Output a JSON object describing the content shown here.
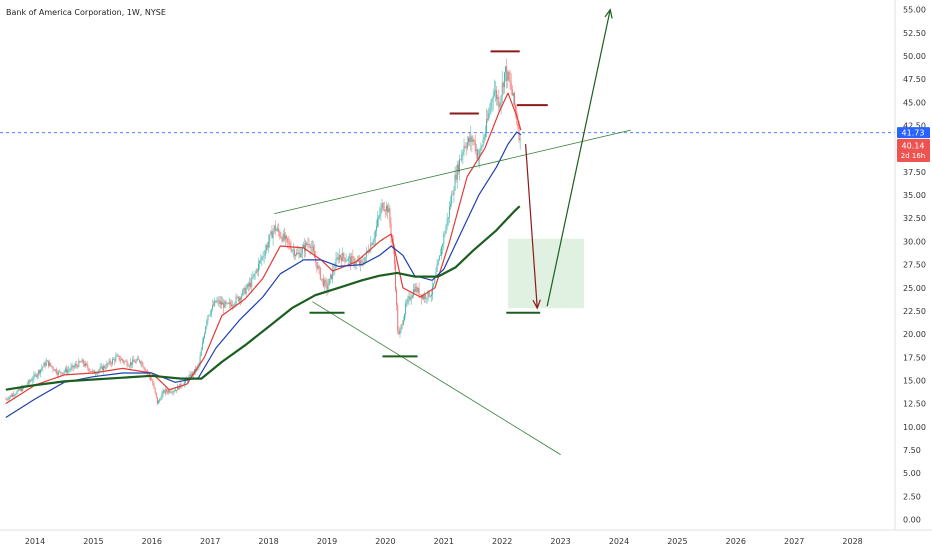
{
  "header": {
    "symbol_title": "Bank of America Corporation, 1W, NYSE"
  },
  "colors": {
    "candle_up": "#26a69a",
    "candle_down": "#ef5350",
    "ma_fast": "#e53935",
    "ma_mid": "#1e40af",
    "ma_slow": "#1b5e20",
    "trend_line": "#2e7d32",
    "drawing_red": "#8b1a1a",
    "drawing_green": "#1b5e20",
    "target_box": "#c8e6c9",
    "price_line": "#2962ff"
  },
  "price_axis": {
    "ticks": [
      "55.00",
      "52.50",
      "50.00",
      "47.50",
      "45.00",
      "42.50",
      "40.00",
      "37.50",
      "35.00",
      "32.50",
      "30.00",
      "27.50",
      "25.00",
      "22.50",
      "20.00",
      "17.50",
      "15.00",
      "12.50",
      "10.00",
      "7.50",
      "5.00",
      "2.50",
      "0.00"
    ],
    "last_price_tag": "41.73",
    "current_price_tag": "40.14",
    "countdown_tag": "2d 16h"
  },
  "time_axis": {
    "ticks": [
      "2014",
      "2015",
      "2016",
      "2017",
      "2018",
      "2019",
      "2020",
      "2021",
      "2022",
      "2023",
      "2024",
      "2025",
      "2026",
      "2027",
      "2028"
    ]
  },
  "chart_data": {
    "type": "candlestick",
    "title": "Bank of America Corporation, 1W, NYSE",
    "ylim": [
      0,
      55
    ],
    "xlim": [
      2013.5,
      2028.8
    ],
    "price_line": 41.73,
    "price_key": [
      [
        2013.5,
        13.0
      ],
      [
        2013.8,
        14.2
      ],
      [
        2014.0,
        15.5
      ],
      [
        2014.2,
        17.0
      ],
      [
        2014.4,
        15.8
      ],
      [
        2014.6,
        16.2
      ],
      [
        2014.8,
        17.0
      ],
      [
        2015.0,
        15.8
      ],
      [
        2015.2,
        16.5
      ],
      [
        2015.4,
        17.5
      ],
      [
        2015.6,
        16.8
      ],
      [
        2015.8,
        17.2
      ],
      [
        2016.0,
        15.0
      ],
      [
        2016.1,
        12.5
      ],
      [
        2016.2,
        13.8
      ],
      [
        2016.4,
        14.0
      ],
      [
        2016.6,
        15.0
      ],
      [
        2016.8,
        16.5
      ],
      [
        2016.95,
        22.0
      ],
      [
        2017.1,
        23.5
      ],
      [
        2017.3,
        23.0
      ],
      [
        2017.5,
        24.0
      ],
      [
        2017.7,
        25.5
      ],
      [
        2017.9,
        28.5
      ],
      [
        2018.1,
        31.5
      ],
      [
        2018.3,
        30.0
      ],
      [
        2018.5,
        28.5
      ],
      [
        2018.7,
        30.0
      ],
      [
        2018.9,
        26.0
      ],
      [
        2019.0,
        25.0
      ],
      [
        2019.2,
        28.5
      ],
      [
        2019.4,
        28.0
      ],
      [
        2019.6,
        27.5
      ],
      [
        2019.8,
        30.5
      ],
      [
        2019.95,
        34.0
      ],
      [
        2020.05,
        33.5
      ],
      [
        2020.15,
        28.0
      ],
      [
        2020.22,
        19.5
      ],
      [
        2020.35,
        23.0
      ],
      [
        2020.5,
        25.0
      ],
      [
        2020.65,
        24.0
      ],
      [
        2020.8,
        24.5
      ],
      [
        2020.9,
        27.5
      ],
      [
        2021.05,
        32.0
      ],
      [
        2021.2,
        37.0
      ],
      [
        2021.35,
        40.5
      ],
      [
        2021.5,
        41.0
      ],
      [
        2021.6,
        39.0
      ],
      [
        2021.75,
        43.0
      ],
      [
        2021.85,
        46.5
      ],
      [
        2021.95,
        45.0
      ],
      [
        2022.05,
        48.5
      ],
      [
        2022.15,
        46.5
      ],
      [
        2022.25,
        43.5
      ],
      [
        2022.32,
        40.1
      ]
    ],
    "moving_averages": [
      {
        "key": "ma_fast",
        "color_key": "ma_fast",
        "width": 1.2,
        "points": [
          [
            2013.5,
            12.5
          ],
          [
            2014.0,
            14.5
          ],
          [
            2014.5,
            15.6
          ],
          [
            2015.0,
            15.8
          ],
          [
            2015.5,
            16.3
          ],
          [
            2016.0,
            15.8
          ],
          [
            2016.3,
            14.0
          ],
          [
            2016.6,
            14.6
          ],
          [
            2016.9,
            17.5
          ],
          [
            2017.2,
            22.0
          ],
          [
            2017.6,
            23.8
          ],
          [
            2017.9,
            26.0
          ],
          [
            2018.2,
            29.5
          ],
          [
            2018.6,
            29.3
          ],
          [
            2018.9,
            28.0
          ],
          [
            2019.1,
            26.8
          ],
          [
            2019.5,
            27.8
          ],
          [
            2019.9,
            30.0
          ],
          [
            2020.1,
            30.8
          ],
          [
            2020.3,
            25.0
          ],
          [
            2020.6,
            24.0
          ],
          [
            2020.85,
            25.0
          ],
          [
            2021.1,
            30.0
          ],
          [
            2021.4,
            37.0
          ],
          [
            2021.7,
            40.0
          ],
          [
            2021.95,
            44.0
          ],
          [
            2022.1,
            46.0
          ],
          [
            2022.25,
            43.5
          ],
          [
            2022.32,
            42.0
          ]
        ]
      },
      {
        "key": "ma_mid",
        "color_key": "ma_mid",
        "width": 1.2,
        "points": [
          [
            2013.5,
            11.0
          ],
          [
            2014.0,
            13.0
          ],
          [
            2014.5,
            14.8
          ],
          [
            2015.0,
            15.4
          ],
          [
            2015.5,
            15.8
          ],
          [
            2016.0,
            15.8
          ],
          [
            2016.4,
            14.8
          ],
          [
            2016.8,
            15.3
          ],
          [
            2017.1,
            18.5
          ],
          [
            2017.5,
            21.5
          ],
          [
            2017.9,
            24.0
          ],
          [
            2018.2,
            26.5
          ],
          [
            2018.6,
            28.0
          ],
          [
            2018.9,
            28.0
          ],
          [
            2019.2,
            27.3
          ],
          [
            2019.6,
            27.5
          ],
          [
            2019.9,
            28.5
          ],
          [
            2020.1,
            29.5
          ],
          [
            2020.3,
            28.5
          ],
          [
            2020.5,
            26.3
          ],
          [
            2020.8,
            25.8
          ],
          [
            2021.0,
            27.0
          ],
          [
            2021.3,
            31.0
          ],
          [
            2021.6,
            35.0
          ],
          [
            2021.9,
            38.0
          ],
          [
            2022.1,
            40.5
          ],
          [
            2022.25,
            41.8
          ],
          [
            2022.32,
            41.5
          ]
        ]
      },
      {
        "key": "ma_slow",
        "color_key": "ma_slow",
        "width": 2.2,
        "points": [
          [
            2013.5,
            14.0
          ],
          [
            2014.0,
            14.5
          ],
          [
            2014.5,
            14.9
          ],
          [
            2015.0,
            15.1
          ],
          [
            2015.5,
            15.3
          ],
          [
            2016.0,
            15.5
          ],
          [
            2016.5,
            15.2
          ],
          [
            2016.85,
            15.2
          ],
          [
            2017.2,
            17.0
          ],
          [
            2017.6,
            18.8
          ],
          [
            2018.0,
            20.8
          ],
          [
            2018.4,
            22.8
          ],
          [
            2018.8,
            24.2
          ],
          [
            2019.2,
            25.0
          ],
          [
            2019.6,
            25.8
          ],
          [
            2019.9,
            26.3
          ],
          [
            2020.2,
            26.6
          ],
          [
            2020.5,
            26.2
          ],
          [
            2020.9,
            26.2
          ],
          [
            2021.2,
            27.2
          ],
          [
            2021.5,
            29.0
          ],
          [
            2021.9,
            31.2
          ],
          [
            2022.2,
            33.2
          ],
          [
            2022.3,
            33.8
          ]
        ]
      }
    ],
    "drawings": {
      "trend_lines": [
        {
          "from": [
            2018.1,
            33.0
          ],
          "to": [
            2024.2,
            42.0
          ],
          "color_key": "trend_line"
        },
        {
          "from": [
            2018.75,
            23.5
          ],
          "to": [
            2023.0,
            7.0
          ],
          "color_key": "trend_line"
        }
      ],
      "horizontal_marks": [
        {
          "x": [
            2021.8,
            2022.3
          ],
          "y": 50.5,
          "color_key": "drawing_red"
        },
        {
          "x": [
            2021.1,
            2021.6
          ],
          "y": 43.8,
          "color_key": "drawing_red"
        },
        {
          "x": [
            2022.25,
            2022.78
          ],
          "y": 44.7,
          "color_key": "drawing_red"
        },
        {
          "x": [
            2018.7,
            2019.3
          ],
          "y": 22.3,
          "color_key": "drawing_green"
        },
        {
          "x": [
            2019.95,
            2020.55
          ],
          "y": 17.6,
          "color_key": "drawing_green"
        },
        {
          "x": [
            2022.07,
            2022.65
          ],
          "y": 22.3,
          "color_key": "drawing_green"
        }
      ],
      "arrows": [
        {
          "from": [
            2022.4,
            40.5
          ],
          "to": [
            2022.6,
            22.8
          ],
          "color_key": "drawing_red"
        },
        {
          "from": [
            2022.77,
            23.0
          ],
          "to": [
            2023.85,
            55.0
          ],
          "color_key": "drawing_green"
        }
      ],
      "target_box": {
        "x": [
          2022.1,
          2023.4
        ],
        "y": [
          22.8,
          30.3
        ],
        "color_key": "target_box"
      }
    }
  }
}
